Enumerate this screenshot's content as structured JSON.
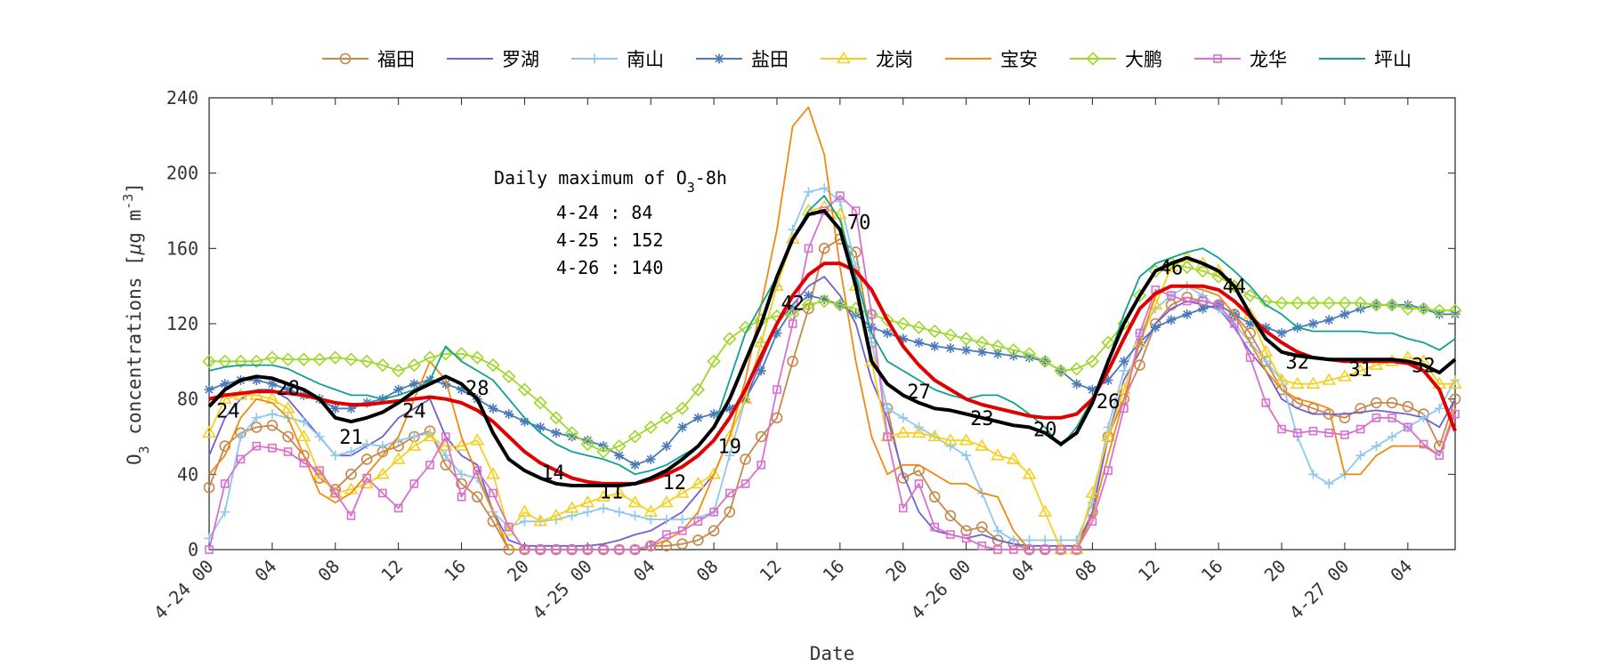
{
  "chart_data": {
    "type": "line",
    "title": "",
    "xlabel": "Date",
    "ylabel": "O3 concentrations [μg m-3]",
    "ylim": [
      0,
      240
    ],
    "xlim": [
      0,
      79
    ],
    "yticks": [
      0,
      40,
      80,
      120,
      160,
      200,
      240
    ],
    "xticks": [
      {
        "x": 0,
        "label": "4-24 00"
      },
      {
        "x": 4,
        "label": "04"
      },
      {
        "x": 8,
        "label": "08"
      },
      {
        "x": 12,
        "label": "12"
      },
      {
        "x": 16,
        "label": "16"
      },
      {
        "x": 20,
        "label": "20"
      },
      {
        "x": 24,
        "label": "4-25 00"
      },
      {
        "x": 28,
        "label": "04"
      },
      {
        "x": 32,
        "label": "08"
      },
      {
        "x": 36,
        "label": "12"
      },
      {
        "x": 40,
        "label": "16"
      },
      {
        "x": 44,
        "label": "20"
      },
      {
        "x": 48,
        "label": "4-26 00"
      },
      {
        "x": 52,
        "label": "04"
      },
      {
        "x": 56,
        "label": "08"
      },
      {
        "x": 60,
        "label": "12"
      },
      {
        "x": 64,
        "label": "16"
      },
      {
        "x": 68,
        "label": "20"
      },
      {
        "x": 72,
        "label": "4-27 00"
      },
      {
        "x": 76,
        "label": "04"
      }
    ],
    "legend_position": "top",
    "grid": false,
    "annotation": {
      "title": "Daily maximum of O3-8h",
      "lines": [
        "4-24 : 84",
        "4-25 : 152",
        "4-26 : 140"
      ]
    },
    "series": [
      {
        "name": "福田",
        "color": "#c8864a",
        "marker": "circle",
        "values": [
          33,
          55,
          62,
          65,
          66,
          60,
          50,
          38,
          32,
          40,
          48,
          52,
          55,
          60,
          63,
          45,
          35,
          28,
          15,
          0,
          0,
          0,
          0,
          0,
          0,
          0,
          0,
          0,
          2,
          2,
          3,
          5,
          10,
          20,
          48,
          60,
          70,
          100,
          128,
          160,
          165,
          158,
          110,
          75,
          38,
          42,
          28,
          18,
          10,
          12,
          5,
          3,
          0,
          0,
          0,
          0,
          20,
          60,
          80,
          98,
          120,
          130,
          134,
          132,
          130,
          125,
          115,
          100,
          85,
          78,
          75,
          72,
          70,
          75,
          78,
          78,
          76,
          72,
          55,
          80
        ]
      },
      {
        "name": "罗湖",
        "color": "#7060d0",
        "marker": "none",
        "values": [
          50,
          70,
          80,
          85,
          85,
          80,
          70,
          60,
          50,
          50,
          55,
          60,
          70,
          75,
          80,
          60,
          50,
          45,
          20,
          5,
          2,
          2,
          2,
          2,
          2,
          3,
          5,
          8,
          10,
          15,
          20,
          30,
          40,
          60,
          80,
          100,
          120,
          130,
          140,
          145,
          135,
          120,
          90,
          70,
          40,
          20,
          10,
          8,
          6,
          8,
          5,
          3,
          2,
          2,
          2,
          2,
          20,
          60,
          90,
          105,
          120,
          128,
          132,
          130,
          128,
          118,
          105,
          95,
          80,
          75,
          72,
          72,
          72,
          73,
          74,
          73,
          72,
          70,
          65,
          80
        ]
      },
      {
        "name": "南山",
        "color": "#8ec8f0",
        "marker": "plus",
        "values": [
          6,
          20,
          60,
          70,
          72,
          70,
          68,
          60,
          50,
          52,
          56,
          55,
          58,
          60,
          62,
          50,
          40,
          38,
          20,
          12,
          15,
          15,
          16,
          18,
          20,
          22,
          20,
          18,
          16,
          16,
          16,
          17,
          20,
          50,
          80,
          110,
          140,
          170,
          190,
          192,
          185,
          150,
          110,
          75,
          70,
          65,
          60,
          55,
          50,
          30,
          10,
          5,
          5,
          5,
          5,
          5,
          25,
          65,
          95,
          115,
          128,
          135,
          140,
          135,
          128,
          120,
          110,
          100,
          90,
          60,
          40,
          35,
          40,
          50,
          55,
          60,
          65,
          70,
          75,
          90
        ]
      },
      {
        "name": "盐田",
        "color": "#4a7ab8",
        "marker": "star",
        "values": [
          85,
          88,
          90,
          90,
          88,
          85,
          82,
          80,
          75,
          75,
          78,
          80,
          85,
          88,
          90,
          88,
          85,
          80,
          75,
          72,
          68,
          65,
          62,
          60,
          58,
          55,
          50,
          45,
          48,
          55,
          65,
          70,
          72,
          75,
          80,
          95,
          115,
          128,
          135,
          133,
          130,
          125,
          118,
          115,
          112,
          110,
          108,
          107,
          106,
          105,
          104,
          103,
          102,
          100,
          95,
          88,
          85,
          90,
          100,
          110,
          118,
          122,
          125,
          128,
          130,
          125,
          120,
          118,
          115,
          118,
          120,
          122,
          125,
          128,
          130,
          130,
          130,
          128,
          125,
          125
        ]
      },
      {
        "name": "龙岗",
        "color": "#f5d020",
        "marker": "triangle",
        "values": [
          62,
          80,
          82,
          82,
          80,
          75,
          60,
          40,
          30,
          32,
          35,
          40,
          48,
          55,
          60,
          55,
          55,
          58,
          40,
          10,
          20,
          15,
          18,
          22,
          25,
          28,
          30,
          25,
          20,
          25,
          30,
          35,
          40,
          60,
          80,
          110,
          140,
          165,
          180,
          182,
          178,
          140,
          100,
          60,
          62,
          62,
          60,
          58,
          58,
          55,
          50,
          48,
          40,
          20,
          0,
          0,
          30,
          60,
          85,
          110,
          130,
          150,
          155,
          152,
          148,
          140,
          125,
          105,
          90,
          88,
          88,
          90,
          92,
          95,
          98,
          100,
          102,
          100,
          88,
          88
        ]
      },
      {
        "name": "宝安",
        "color": "#f08a10",
        "marker": "none",
        "values": [
          40,
          50,
          70,
          80,
          78,
          70,
          50,
          30,
          25,
          30,
          40,
          50,
          60,
          80,
          100,
          90,
          60,
          40,
          20,
          0,
          0,
          0,
          0,
          0,
          0,
          0,
          0,
          0,
          2,
          5,
          10,
          20,
          40,
          60,
          90,
          130,
          170,
          225,
          235,
          210,
          150,
          100,
          60,
          40,
          45,
          45,
          40,
          35,
          35,
          30,
          28,
          10,
          0,
          0,
          0,
          0,
          18,
          50,
          80,
          110,
          135,
          140,
          140,
          138,
          135,
          125,
          110,
          95,
          85,
          80,
          78,
          75,
          40,
          40,
          50,
          55,
          55,
          55,
          50,
          75
        ]
      },
      {
        "name": "大鹏",
        "color": "#9ed82a",
        "marker": "diamond",
        "values": [
          100,
          100,
          100,
          100,
          102,
          101,
          101,
          101,
          102,
          101,
          100,
          98,
          95,
          98,
          102,
          104,
          104,
          102,
          98,
          92,
          85,
          78,
          70,
          62,
          56,
          52,
          55,
          60,
          65,
          70,
          75,
          85,
          100,
          112,
          118,
          122,
          124,
          125,
          130,
          132,
          130,
          128,
          125,
          122,
          120,
          118,
          116,
          114,
          112,
          110,
          108,
          106,
          104,
          100,
          95,
          96,
          100,
          110,
          120,
          135,
          148,
          152,
          150,
          148,
          145,
          140,
          135,
          132,
          131,
          131,
          131,
          131,
          131,
          131,
          130,
          130,
          128,
          128,
          127,
          127
        ]
      },
      {
        "name": "龙华",
        "color": "#d870d0",
        "marker": "square",
        "values": [
          0,
          35,
          48,
          55,
          54,
          52,
          46,
          42,
          30,
          18,
          38,
          30,
          22,
          35,
          45,
          60,
          28,
          42,
          30,
          12,
          0,
          0,
          0,
          0,
          0,
          0,
          0,
          0,
          2,
          8,
          10,
          15,
          20,
          30,
          35,
          45,
          85,
          120,
          160,
          180,
          188,
          180,
          125,
          60,
          22,
          35,
          12,
          8,
          6,
          2,
          0,
          0,
          0,
          0,
          0,
          0,
          15,
          42,
          75,
          115,
          138,
          135,
          132,
          132,
          130,
          120,
          102,
          78,
          64,
          62,
          63,
          62,
          61,
          64,
          70,
          70,
          65,
          56,
          50,
          72
        ]
      },
      {
        "name": "坪山",
        "color": "#10a090",
        "marker": "none",
        "values": [
          95,
          97,
          98,
          98,
          98,
          96,
          92,
          88,
          85,
          82,
          82,
          80,
          82,
          85,
          90,
          108,
          100,
          95,
          90,
          80,
          70,
          62,
          56,
          52,
          50,
          48,
          45,
          40,
          42,
          45,
          50,
          55,
          65,
          90,
          115,
          130,
          145,
          165,
          180,
          188,
          175,
          145,
          115,
          100,
          95,
          90,
          85,
          82,
          80,
          82,
          82,
          78,
          72,
          65,
          55,
          65,
          80,
          100,
          125,
          145,
          152,
          155,
          158,
          160,
          155,
          148,
          140,
          130,
          125,
          118,
          116,
          116,
          116,
          116,
          115,
          115,
          112,
          110,
          106,
          112
        ]
      }
    ],
    "mean_series": [
      {
        "color": "#e00000",
        "values": [
          80,
          82,
          83,
          84,
          84,
          83,
          82,
          80,
          78,
          77,
          77,
          78,
          79,
          80,
          81,
          80,
          78,
          74,
          68,
          60,
          52,
          46,
          42,
          38,
          36,
          35,
          35,
          35,
          37,
          40,
          44,
          50,
          58,
          70,
          85,
          103,
          120,
          135,
          146,
          152,
          152,
          148,
          138,
          122,
          108,
          98,
          90,
          85,
          80,
          77,
          75,
          73,
          71,
          70,
          70,
          72,
          80,
          95,
          112,
          128,
          136,
          140,
          140,
          140,
          138,
          132,
          124,
          116,
          110,
          105,
          102,
          101,
          100,
          100,
          100,
          100,
          99,
          95,
          85,
          63
        ]
      },
      {
        "color": "#000000",
        "values": [
          76,
          85,
          90,
          92,
          91,
          88,
          85,
          80,
          70,
          68,
          70,
          73,
          78,
          84,
          88,
          92,
          88,
          80,
          62,
          48,
          42,
          38,
          35,
          34,
          34,
          34,
          34,
          35,
          38,
          42,
          48,
          55,
          65,
          80,
          100,
          120,
          145,
          165,
          178,
          180,
          170,
          140,
          100,
          88,
          82,
          78,
          75,
          74,
          72,
          70,
          68,
          66,
          65,
          62,
          56,
          62,
          78,
          100,
          120,
          135,
          148,
          152,
          155,
          152,
          148,
          140,
          125,
          112,
          105,
          103,
          102,
          101,
          101,
          101,
          101,
          101,
          100,
          98,
          94,
          101
        ]
      }
    ],
    "data_labels": [
      {
        "x": 1.2,
        "y": 74,
        "text": "24"
      },
      {
        "x": 5.0,
        "y": 86,
        "text": "28"
      },
      {
        "x": 9.0,
        "y": 60,
        "text": "21"
      },
      {
        "x": 13.0,
        "y": 74,
        "text": "24"
      },
      {
        "x": 17.0,
        "y": 86,
        "text": "28"
      },
      {
        "x": 21.8,
        "y": 41,
        "text": "14"
      },
      {
        "x": 25.5,
        "y": 31,
        "text": "11"
      },
      {
        "x": 29.5,
        "y": 36,
        "text": "12"
      },
      {
        "x": 33.0,
        "y": 55,
        "text": "19"
      },
      {
        "x": 37.0,
        "y": 131,
        "text": "42"
      },
      {
        "x": 41.2,
        "y": 174,
        "text": "70"
      },
      {
        "x": 45.0,
        "y": 84,
        "text": "27"
      },
      {
        "x": 49.0,
        "y": 70,
        "text": "23"
      },
      {
        "x": 53.0,
        "y": 64,
        "text": "20"
      },
      {
        "x": 57.0,
        "y": 79,
        "text": "26"
      },
      {
        "x": 61.0,
        "y": 150,
        "text": "46"
      },
      {
        "x": 65.0,
        "y": 140,
        "text": "44"
      },
      {
        "x": 69.0,
        "y": 100,
        "text": "32"
      },
      {
        "x": 73.0,
        "y": 96,
        "text": "31"
      },
      {
        "x": 77.0,
        "y": 98,
        "text": "32"
      }
    ]
  }
}
